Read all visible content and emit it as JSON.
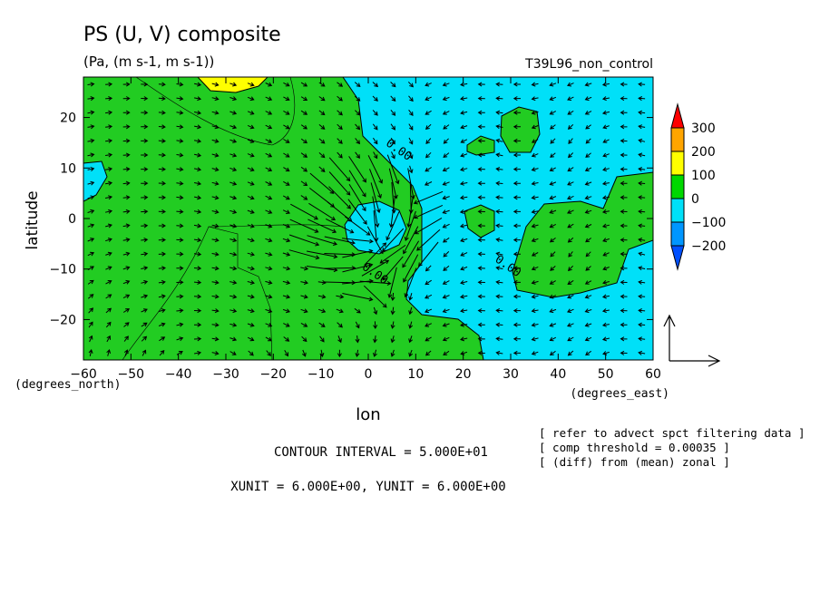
{
  "chart_data": {
    "type": "heatmap",
    "title": "PS (U, V) composite",
    "subtitle": "(Pa, (m s-1, m s-1))",
    "run_label": "T39L96_non_control",
    "xlabel": "lon",
    "ylabel": "latitude",
    "x_unit_label": "(degrees_east)",
    "y_unit_label": "(degrees_north)",
    "xlim": [
      -60,
      60
    ],
    "ylim": [
      -28,
      28
    ],
    "x_ticks": [
      -60,
      -50,
      -40,
      -30,
      -20,
      -10,
      0,
      10,
      20,
      30,
      40,
      50,
      60
    ],
    "y_ticks": [
      -20,
      -10,
      0,
      10,
      20
    ],
    "x_tick_labels": [
      "−60",
      "−50",
      "−40",
      "−30",
      "−20",
      "−10",
      "0",
      "10",
      "20",
      "30",
      "40",
      "50",
      "60"
    ],
    "y_tick_labels": [
      "−20",
      "−10",
      "0",
      "10",
      "20"
    ],
    "contour_labels": [
      {
        "text": "0.00",
        "lon": 6,
        "lat": 13
      },
      {
        "text": "0.00",
        "lon": 1,
        "lat": -11.5
      },
      {
        "text": "0.00",
        "lon": 29,
        "lat": -10
      }
    ],
    "colorbar": {
      "levels": [
        "300",
        "200",
        "100",
        "0",
        "−100",
        "−200"
      ],
      "colors": [
        "#ff0000",
        "#ffa500",
        "#ffff00",
        "#00d800",
        "#00e0f8",
        "#0096ff",
        "#0050ff"
      ]
    },
    "field_colors": {
      "positive": "#22cc22",
      "negative": "#00e0f8",
      "high": "#ffff00"
    },
    "footer": {
      "contour_interval": "CONTOUR INTERVAL = 5.000E+01",
      "units": "XUNIT = 6.000E+00, YUNIT = 6.000E+00"
    },
    "notes": [
      "[ refer to advect spct filtering data ]",
      "[ comp threshold = 0.00035 ]",
      "[ (diff) from (mean) zonal ]"
    ]
  }
}
